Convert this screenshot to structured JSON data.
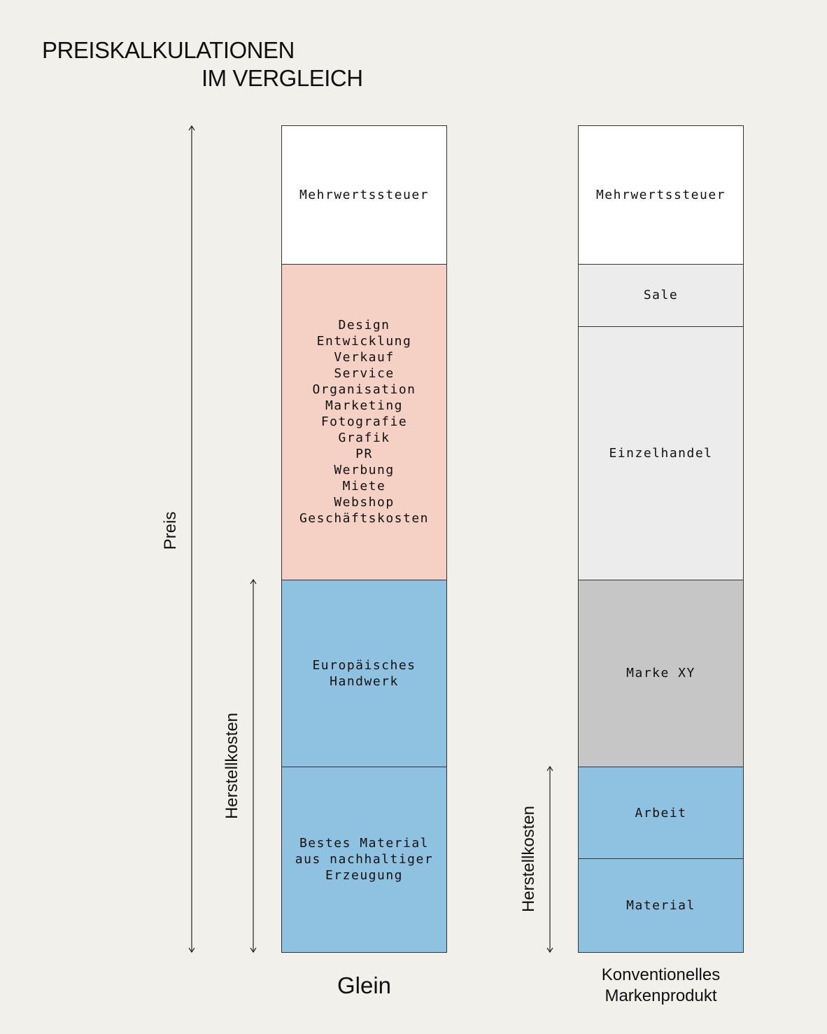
{
  "title": {
    "line1": "PREISKALKULATIONEN",
    "line2": "IM VERGLEICH"
  },
  "colors": {
    "background": "#f2f0ea",
    "white": "#ffffff",
    "pink": "#f5d0c4",
    "blue": "#8fc2e1",
    "light_gray": "#ececec",
    "mid_gray": "#c6c6c6"
  },
  "axes": {
    "preis_label": "Preis",
    "herstellkosten_label_left": "Herstellkosten",
    "herstellkosten_label_right": "Herstellkosten"
  },
  "columns": [
    {
      "caption": "Glein",
      "segments": [
        {
          "label": "Mehrwertssteuer",
          "color": "#ffffff",
          "share": 0.1668
        },
        {
          "label": "Design\nEntwicklung\nVerkauf\nService\nOrganisation\nMarketing\nFotografie\nGrafik\nPR\nWerbung\nMiete\nWebshop\nGeschäftskosten",
          "color": "#f5d0c4",
          "share": 0.3824
        },
        {
          "label": "Europäisches\nHandwerk",
          "color": "#8fc2e1",
          "share": 0.2259
        },
        {
          "label": "Bestes Material\naus nachhaltiger\nErzeugung",
          "color": "#8fc2e1",
          "share": 0.2249
        }
      ]
    },
    {
      "caption": "Konventionelles\nMarkenprodukt",
      "segments": [
        {
          "label": "Mehrwertssteuer",
          "color": "#ffffff",
          "share": 0.1668
        },
        {
          "label": "Sale",
          "color": "#ececec",
          "share": 0.0753
        },
        {
          "label": "Einzelhandel",
          "color": "#ececec",
          "share": 0.3071
        },
        {
          "label": "Marke XY",
          "color": "#c6c6c6",
          "share": 0.2259
        },
        {
          "label": "Arbeit",
          "color": "#8fc2e1",
          "share": 0.1117
        },
        {
          "label": "Material",
          "color": "#8fc2e1",
          "share": 0.1132
        }
      ]
    }
  ]
}
